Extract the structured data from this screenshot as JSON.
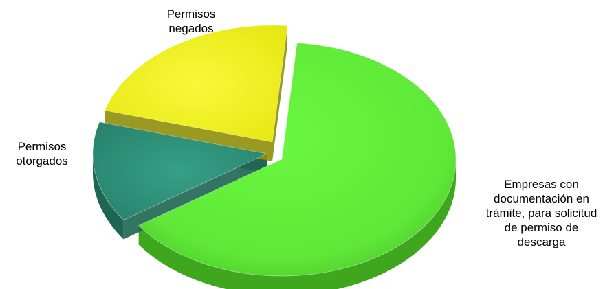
{
  "chart_data": {
    "type": "pie",
    "style": "3d-exploded",
    "legend": "none",
    "slices": [
      {
        "label": "Empresas con documentación en trámite, para solicitud de permiso de descarga",
        "value": 64,
        "color": "#62f23a"
      },
      {
        "label": "Permisos otorgados",
        "value": 14,
        "color": "#2f927a"
      },
      {
        "label": "Permisos negados",
        "value": 22,
        "color": "#f2f21a"
      }
    ]
  }
}
